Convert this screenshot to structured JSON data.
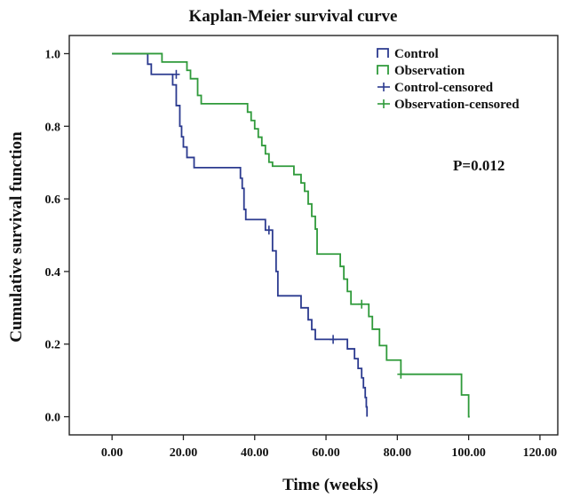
{
  "chart_data": {
    "type": "line",
    "title": "Kaplan-Meier survival curve",
    "xlabel": "Time (weeks)",
    "ylabel": "Cumulative survival function",
    "xlim": [
      -12,
      125
    ],
    "ylim": [
      -0.05,
      1.05
    ],
    "x_ticks": [
      "0.00",
      "20.00",
      "40.00",
      "60.00",
      "80.00",
      "100.00",
      "120.00"
    ],
    "y_ticks": [
      "0.0",
      "0.2",
      "0.4",
      "0.6",
      "0.8",
      "1.0"
    ],
    "x_tick_values": [
      0,
      20,
      40,
      60,
      80,
      100,
      120
    ],
    "y_tick_values": [
      0,
      0.2,
      0.4,
      0.6,
      0.8,
      1.0
    ],
    "grid": false,
    "legend_position": "top-right",
    "annotation": "P=0.012",
    "legend": [
      "Control",
      "Observation",
      "Control-censored",
      "Observation-censored"
    ],
    "series": [
      {
        "name": "Control",
        "color": "#2b3a8f",
        "steps": [
          [
            0,
            1.0
          ],
          [
            10,
            0.971
          ],
          [
            11,
            0.943
          ],
          [
            17,
            0.914
          ],
          [
            18,
            0.857
          ],
          [
            19,
            0.8
          ],
          [
            19.5,
            0.771
          ],
          [
            20,
            0.743
          ],
          [
            21,
            0.714
          ],
          [
            23,
            0.686
          ],
          [
            36,
            0.657
          ],
          [
            36.5,
            0.629
          ],
          [
            37,
            0.571
          ],
          [
            37.5,
            0.543
          ],
          [
            43,
            0.514
          ],
          [
            45,
            0.457
          ],
          [
            46,
            0.4
          ],
          [
            46.5,
            0.333
          ],
          [
            53,
            0.3
          ],
          [
            55,
            0.267
          ],
          [
            56,
            0.24
          ],
          [
            57,
            0.213
          ],
          [
            66,
            0.187
          ],
          [
            68,
            0.16
          ],
          [
            69,
            0.133
          ],
          [
            70,
            0.107
          ],
          [
            70.5,
            0.08
          ],
          [
            71,
            0.053
          ],
          [
            71.3,
            0.027
          ],
          [
            71.5,
            0.0
          ]
        ],
        "end_x": 71.5,
        "censored": [
          [
            18,
            0.943
          ],
          [
            44,
            0.514
          ],
          [
            62,
            0.213
          ]
        ]
      },
      {
        "name": "Observation",
        "color": "#2f9a3a",
        "steps": [
          [
            0,
            1.0
          ],
          [
            14,
            0.977
          ],
          [
            21,
            0.954
          ],
          [
            22,
            0.931
          ],
          [
            24,
            0.885
          ],
          [
            25,
            0.862
          ],
          [
            38,
            0.839
          ],
          [
            39,
            0.816
          ],
          [
            40,
            0.793
          ],
          [
            41,
            0.77
          ],
          [
            42,
            0.747
          ],
          [
            43,
            0.724
          ],
          [
            44,
            0.701
          ],
          [
            45,
            0.69
          ],
          [
            51,
            0.667
          ],
          [
            53,
            0.644
          ],
          [
            54,
            0.621
          ],
          [
            55,
            0.586
          ],
          [
            56,
            0.552
          ],
          [
            57,
            0.517
          ],
          [
            57.5,
            0.448
          ],
          [
            64,
            0.414
          ],
          [
            65,
            0.379
          ],
          [
            66,
            0.345
          ],
          [
            67,
            0.31
          ],
          [
            72,
            0.276
          ],
          [
            73,
            0.241
          ],
          [
            75,
            0.196
          ],
          [
            77,
            0.156
          ],
          [
            81,
            0.117
          ],
          [
            98,
            0.06
          ],
          [
            100,
            0.0
          ]
        ],
        "end_x": 100.3,
        "censored": [
          [
            70,
            0.31
          ],
          [
            81,
            0.117
          ]
        ]
      }
    ]
  }
}
